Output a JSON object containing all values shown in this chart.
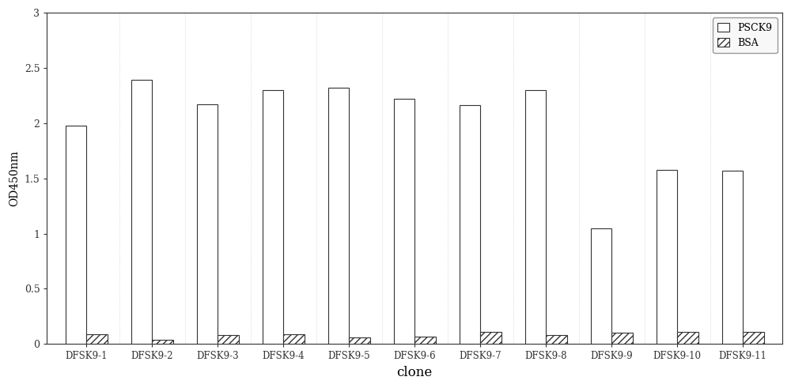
{
  "categories": [
    "DFSK9-1",
    "DFSK9-2",
    "DFSK9-3",
    "DFSK9-4",
    "DFSK9-5",
    "DFSK9-6",
    "DFSK9-7",
    "DFSK9-8",
    "DFSK9-9",
    "DFSK9-10",
    "DFSK9-11"
  ],
  "psck9_values": [
    1.98,
    2.39,
    2.17,
    2.3,
    2.32,
    2.22,
    2.16,
    2.3,
    1.05,
    1.58,
    1.57
  ],
  "bsa_values": [
    0.09,
    0.04,
    0.08,
    0.09,
    0.06,
    0.07,
    0.11,
    0.08,
    0.1,
    0.11,
    0.11
  ],
  "bar_width": 0.32,
  "psck9_color": "white",
  "psck9_edgecolor": "#333333",
  "bsa_color": "white",
  "bsa_edgecolor": "#333333",
  "bsa_hatch": "////",
  "xlabel": "clone",
  "ylabel": "OD450nm",
  "ylim": [
    0,
    3.0
  ],
  "yticks": [
    0,
    0.5,
    1.0,
    1.5,
    2.0,
    2.5,
    3.0
  ],
  "ytick_labels": [
    "0",
    "0.5",
    "1",
    "1.5",
    "2",
    "2.5",
    "3"
  ],
  "legend_labels": [
    "PSCK9",
    "BSA"
  ],
  "background_color": "#ffffff",
  "figure_background": "#ffffff",
  "spine_color": "#333333",
  "grid_color": "#cccccc"
}
